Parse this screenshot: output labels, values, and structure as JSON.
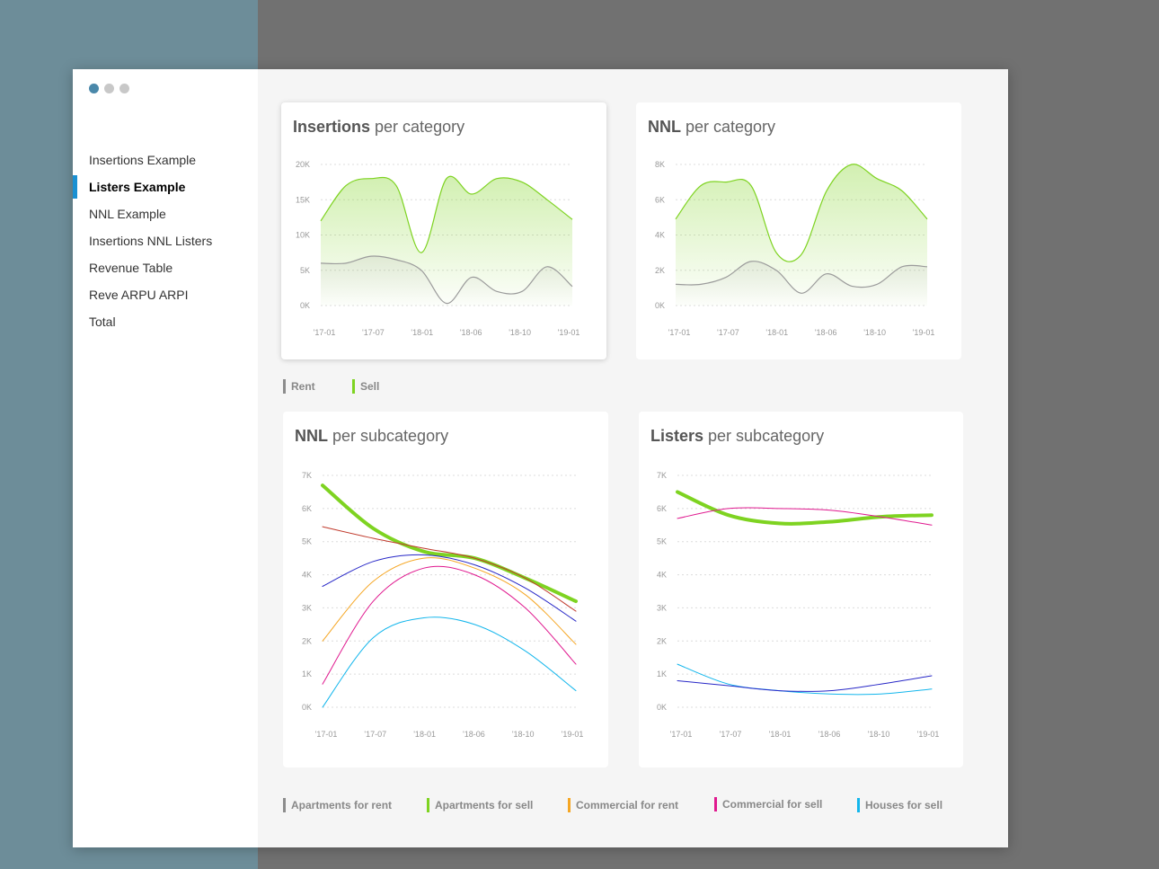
{
  "sidebar": {
    "items": [
      {
        "label": "Insertions Example",
        "active": false
      },
      {
        "label": "Listers Example",
        "active": true
      },
      {
        "label": "NNL Example",
        "active": false
      },
      {
        "label": "Insertions NNL Listers",
        "active": false
      },
      {
        "label": "Revenue Table",
        "active": false
      },
      {
        "label": "Reve ARPU ARPI",
        "active": false
      },
      {
        "label": "Total",
        "active": false
      }
    ]
  },
  "legend_top": [
    {
      "label": "Rent",
      "color": "#8c8c8c"
    },
    {
      "label": "Sell",
      "color": "#7ed321"
    }
  ],
  "legend_bottom": [
    {
      "label": "Apartments for rent",
      "color": "#8c8c8c"
    },
    {
      "label": "Apartments for sell",
      "color": "#7ed321"
    },
    {
      "label": "Commercial for rent",
      "color": "#f5a623"
    },
    {
      "label": "Commercial for sell",
      "color": "#e0198f"
    },
    {
      "label": "Houses for sell",
      "color": "#13b6ec"
    }
  ],
  "chart_data": [
    {
      "type": "area",
      "title_bold": "Insertions",
      "title_rest": " per category",
      "categories": [
        "'17-01",
        "'17-07",
        "'18-01",
        "'18-06",
        "'18-10",
        "'19-01"
      ],
      "x": [
        0,
        0.5,
        1,
        1.5,
        2,
        2.5,
        3,
        3.5,
        4,
        4.5,
        5
      ],
      "ylim": [
        0,
        20000
      ],
      "yticks": [
        0,
        5000,
        10000,
        15000,
        20000
      ],
      "ytick_labels": [
        "0K",
        "5K",
        "10K",
        "15K",
        "20K"
      ],
      "grid": true,
      "series": [
        {
          "name": "Sell",
          "color": "#7ed321",
          "values": [
            12000,
            17000,
            18000,
            17000,
            7500,
            18000,
            15800,
            18000,
            17500,
            15000,
            12200
          ]
        },
        {
          "name": "Rent",
          "color": "#9b9b9b",
          "values": [
            6000,
            6000,
            7000,
            6500,
            5000,
            300,
            4000,
            2000,
            2000,
            5500,
            2700
          ]
        }
      ]
    },
    {
      "type": "area",
      "title_bold": "NNL",
      "title_rest": " per category",
      "categories": [
        "'17-01",
        "'17-07",
        "'18-01",
        "'18-06",
        "'18-10",
        "'19-01"
      ],
      "x": [
        0,
        0.5,
        1,
        1.5,
        2,
        2.5,
        3,
        3.5,
        4,
        4.5,
        5
      ],
      "ylim": [
        0,
        8000
      ],
      "yticks": [
        0,
        2000,
        4000,
        6000,
        8000
      ],
      "ytick_labels": [
        "0K",
        "2K",
        "4K",
        "6K",
        "8K"
      ],
      "grid": true,
      "series": [
        {
          "name": "Sell",
          "color": "#7ed321",
          "values": [
            4900,
            6800,
            7000,
            6800,
            3000,
            2900,
            6500,
            8000,
            7200,
            6500,
            4900
          ]
        },
        {
          "name": "Rent",
          "color": "#9b9b9b",
          "values": [
            1200,
            1200,
            1600,
            2500,
            2000,
            700,
            1800,
            1100,
            1200,
            2200,
            2200
          ]
        }
      ]
    },
    {
      "type": "line",
      "title_bold": "NNL",
      "title_rest": " per subcategory",
      "categories": [
        "'17-01",
        "'17-07",
        "'18-01",
        "'18-06",
        "'18-10",
        "'19-01"
      ],
      "x": [
        0,
        1,
        2,
        3,
        4,
        5
      ],
      "ylim": [
        0,
        7000
      ],
      "yticks": [
        0,
        1000,
        2000,
        3000,
        4000,
        5000,
        6000,
        7000
      ],
      "ytick_labels": [
        "0K",
        "1K",
        "2K",
        "3K",
        "4K",
        "5K",
        "6K",
        "7K"
      ],
      "grid": true,
      "series": [
        {
          "name": "Apartments for sell",
          "color": "#7ed321",
          "width": 4,
          "values": [
            6700,
            5400,
            4700,
            4500,
            3900,
            3200
          ]
        },
        {
          "name": "",
          "color": "#c0392b",
          "width": 1,
          "values": [
            5450,
            5100,
            4800,
            4500,
            3900,
            2900
          ]
        },
        {
          "name": "",
          "color": "#2727c7",
          "width": 1,
          "values": [
            3650,
            4400,
            4600,
            4300,
            3600,
            2600
          ]
        },
        {
          "name": "Commercial for rent",
          "color": "#f5a623",
          "width": 1,
          "values": [
            2000,
            3800,
            4500,
            4200,
            3400,
            1900
          ]
        },
        {
          "name": "Commercial for sell",
          "color": "#e0198f",
          "width": 1,
          "values": [
            700,
            3200,
            4200,
            4000,
            3000,
            1300
          ]
        },
        {
          "name": "Houses for sell",
          "color": "#13b6ec",
          "width": 1,
          "values": [
            0,
            2100,
            2700,
            2500,
            1700,
            500
          ]
        }
      ]
    },
    {
      "type": "line",
      "title_bold": "Listers",
      "title_rest": " per subcategory",
      "categories": [
        "'17-01",
        "'17-07",
        "'18-01",
        "'18-06",
        "'18-10",
        "'19-01"
      ],
      "x": [
        0,
        1,
        2,
        3,
        4,
        5
      ],
      "ylim": [
        0,
        7000
      ],
      "yticks": [
        0,
        1000,
        2000,
        3000,
        4000,
        5000,
        6000,
        7000
      ],
      "ytick_labels": [
        "0K",
        "1K",
        "2K",
        "3K",
        "4K",
        "5K",
        "6K",
        "7K"
      ],
      "grid": true,
      "series": [
        {
          "name": "Apartments for sell",
          "color": "#7ed321",
          "width": 4,
          "values": [
            6500,
            5800,
            5550,
            5600,
            5750,
            5800
          ]
        },
        {
          "name": "Commercial for sell",
          "color": "#e0198f",
          "width": 1,
          "values": [
            5700,
            6000,
            6000,
            5950,
            5750,
            5500
          ]
        },
        {
          "name": "Houses for sell",
          "color": "#13b6ec",
          "width": 1,
          "values": [
            1300,
            700,
            500,
            400,
            400,
            550
          ]
        },
        {
          "name": "",
          "color": "#2727c7",
          "width": 1,
          "values": [
            800,
            650,
            500,
            500,
            700,
            950
          ]
        }
      ]
    }
  ]
}
